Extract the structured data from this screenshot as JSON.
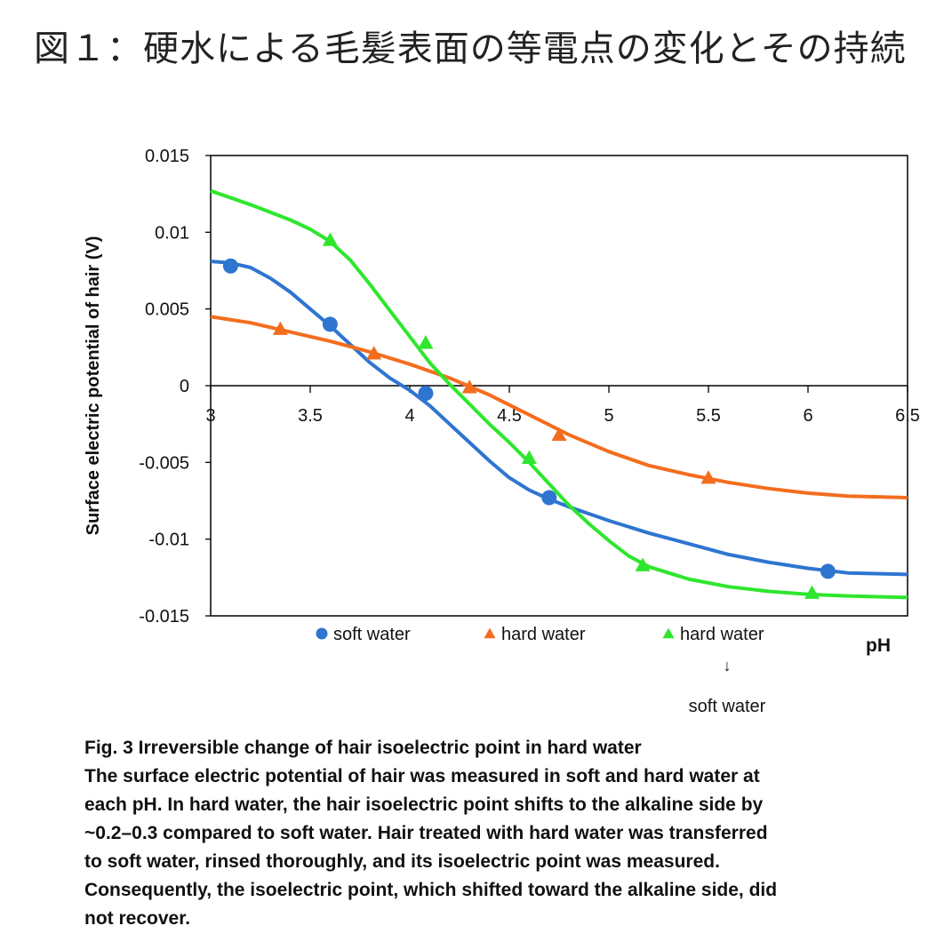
{
  "page_title": "図１：硬水による毛髪表面の等電点の変化とその持続",
  "caption": {
    "lines": [
      "Fig. 3 Irreversible change of hair isoelectric point in hard water",
      "The surface electric potential of hair was measured in soft and hard water at",
      "each pH. In hard water, the hair isoelectric point shifts to the alkaline side by",
      "~0.2–0.3 compared to soft water. Hair treated with hard water was transferred",
      "to soft water, rinsed thoroughly, and its isoelectric point was measured.",
      "Consequently, the isoelectric point, which shifted toward the alkaline side, did",
      "not recover."
    ]
  },
  "chart_data": {
    "type": "scatter",
    "title": "",
    "xlabel": "pH",
    "ylabel": "Surface electric potential of hair (V)",
    "xlim": [
      3,
      6.5
    ],
    "ylim": [
      -0.015,
      0.015
    ],
    "x_ticks": [
      "3",
      "3.5",
      "4",
      "4.5",
      "5",
      "5.5",
      "6",
      "6.5"
    ],
    "y_ticks": [
      "0.015",
      "0.01",
      "0.005",
      "0",
      "-0.005",
      "-0.01",
      "-0.015"
    ],
    "legend_position": "bottom",
    "series": [
      {
        "name": "soft water",
        "marker": "circle",
        "color": "#2e75d1",
        "points": [
          [
            3.1,
            0.0078
          ],
          [
            3.6,
            0.004
          ],
          [
            4.08,
            -0.0005
          ],
          [
            4.7,
            -0.0073
          ],
          [
            6.1,
            -0.0121
          ]
        ],
        "curve": [
          [
            3.0,
            0.0081
          ],
          [
            3.1,
            0.008
          ],
          [
            3.2,
            0.0077
          ],
          [
            3.3,
            0.007
          ],
          [
            3.4,
            0.0061
          ],
          [
            3.5,
            0.005
          ],
          [
            3.6,
            0.0039
          ],
          [
            3.7,
            0.0027
          ],
          [
            3.8,
            0.0015
          ],
          [
            3.9,
            0.0005
          ],
          [
            4.0,
            -0.0003
          ],
          [
            4.1,
            -0.0013
          ],
          [
            4.2,
            -0.0025
          ],
          [
            4.3,
            -0.0037
          ],
          [
            4.4,
            -0.0049
          ],
          [
            4.5,
            -0.006
          ],
          [
            4.6,
            -0.0068
          ],
          [
            4.7,
            -0.0074
          ],
          [
            4.8,
            -0.0079
          ],
          [
            5.0,
            -0.0088
          ],
          [
            5.2,
            -0.0096
          ],
          [
            5.4,
            -0.0103
          ],
          [
            5.6,
            -0.011
          ],
          [
            5.8,
            -0.0115
          ],
          [
            6.0,
            -0.0119
          ],
          [
            6.2,
            -0.0122
          ],
          [
            6.5,
            -0.0123
          ]
        ]
      },
      {
        "name": "hard water",
        "marker": "triangle",
        "color": "#f36d1e",
        "points": [
          [
            3.35,
            0.0037
          ],
          [
            3.82,
            0.0021
          ],
          [
            4.3,
            -0.0001
          ],
          [
            4.75,
            -0.0032
          ],
          [
            5.5,
            -0.006
          ]
        ],
        "curve": [
          [
            3.0,
            0.0045
          ],
          [
            3.2,
            0.0041
          ],
          [
            3.4,
            0.0035
          ],
          [
            3.6,
            0.0029
          ],
          [
            3.8,
            0.0022
          ],
          [
            4.0,
            0.0014
          ],
          [
            4.2,
            0.0005
          ],
          [
            4.4,
            -0.0006
          ],
          [
            4.6,
            -0.0019
          ],
          [
            4.8,
            -0.0032
          ],
          [
            5.0,
            -0.0043
          ],
          [
            5.2,
            -0.0052
          ],
          [
            5.4,
            -0.0058
          ],
          [
            5.6,
            -0.0063
          ],
          [
            5.8,
            -0.0067
          ],
          [
            6.0,
            -0.007
          ],
          [
            6.2,
            -0.0072
          ],
          [
            6.5,
            -0.0073
          ]
        ]
      },
      {
        "name": "hard water",
        "marker": "triangle",
        "color": "#2ee62e",
        "points": [
          [
            3.6,
            0.0095
          ],
          [
            4.08,
            0.0028
          ],
          [
            4.6,
            -0.0047
          ],
          [
            5.17,
            -0.0117
          ],
          [
            6.02,
            -0.0135
          ]
        ],
        "curve": [
          [
            3.0,
            0.0127
          ],
          [
            3.2,
            0.0118
          ],
          [
            3.4,
            0.0108
          ],
          [
            3.5,
            0.0102
          ],
          [
            3.6,
            0.0094
          ],
          [
            3.7,
            0.0082
          ],
          [
            3.8,
            0.0066
          ],
          [
            3.9,
            0.0049
          ],
          [
            4.0,
            0.0032
          ],
          [
            4.1,
            0.0015
          ],
          [
            4.2,
            0.0001
          ],
          [
            4.3,
            -0.0012
          ],
          [
            4.4,
            -0.0025
          ],
          [
            4.5,
            -0.0037
          ],
          [
            4.6,
            -0.005
          ],
          [
            4.7,
            -0.0064
          ],
          [
            4.8,
            -0.0078
          ],
          [
            4.9,
            -0.009
          ],
          [
            5.0,
            -0.0101
          ],
          [
            5.1,
            -0.0111
          ],
          [
            5.2,
            -0.0118
          ],
          [
            5.4,
            -0.0126
          ],
          [
            5.6,
            -0.0131
          ],
          [
            5.8,
            -0.0134
          ],
          [
            6.0,
            -0.0136
          ],
          [
            6.2,
            -0.0137
          ],
          [
            6.5,
            -0.0138
          ]
        ]
      }
    ],
    "legend_subnote": {
      "arrow": "↓",
      "label": "soft water"
    }
  }
}
